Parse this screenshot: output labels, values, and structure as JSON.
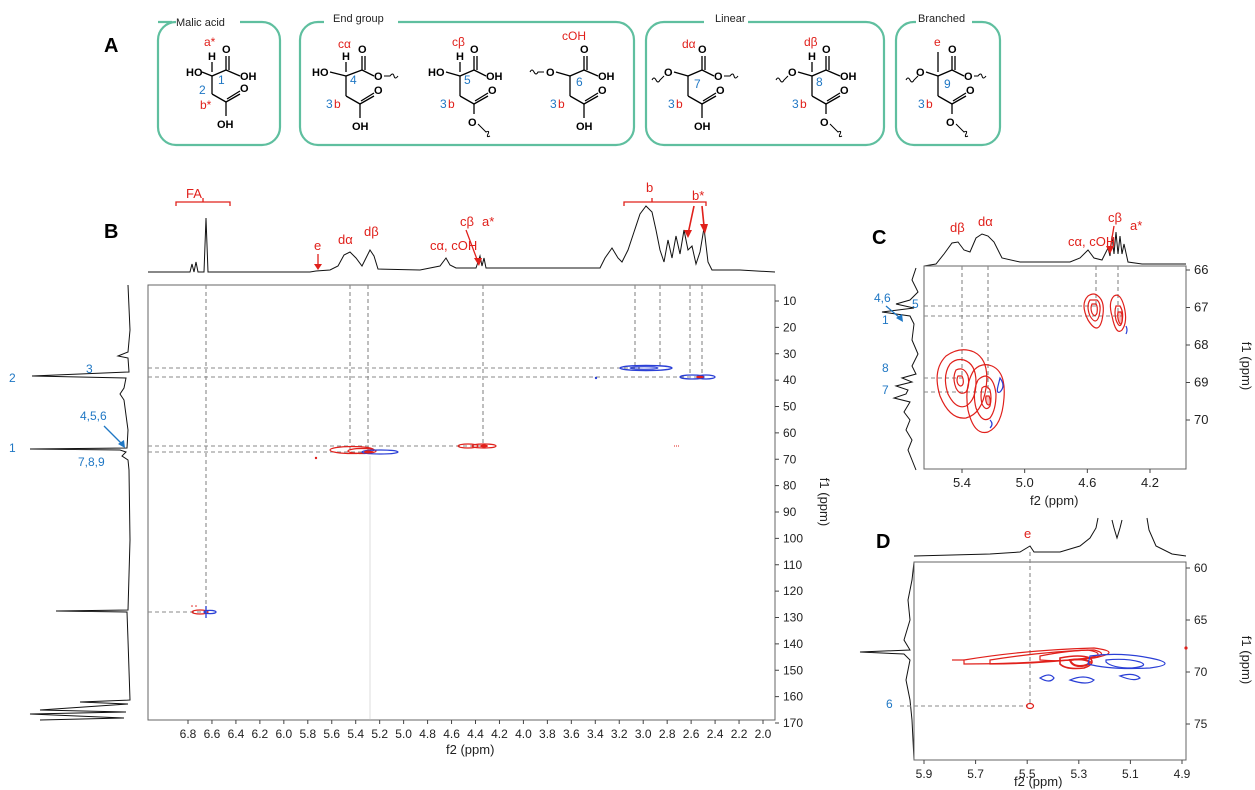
{
  "panels": {
    "A": {
      "letter": "A",
      "groups": [
        {
          "title": "Malic acid"
        },
        {
          "title": "End group"
        },
        {
          "title": "Linear"
        },
        {
          "title": "Branched"
        }
      ],
      "labels": {
        "a_star": "a*",
        "b_star": "b*",
        "c_alpha": "cα",
        "c_beta": "cβ",
        "c_oh": "cOH",
        "d_alpha": "dα",
        "d_beta": "dβ",
        "e": "e",
        "b": "b",
        "n1": "1",
        "n2": "2",
        "n3": "3",
        "n4": "4",
        "n5": "5",
        "n6": "6",
        "n7": "7",
        "n8": "8",
        "n9": "9",
        "ho": "HO",
        "oh": "OH",
        "o": "O",
        "h": "H"
      }
    },
    "B": {
      "letter": "B",
      "xlabel": "f2 (ppm)",
      "ylabel": "f1 (ppm)",
      "x_ticks": [
        "6.8",
        "6.6",
        "6.4",
        "6.2",
        "6.0",
        "5.8",
        "5.6",
        "5.4",
        "5.2",
        "5.0",
        "4.8",
        "4.6",
        "4.4",
        "4.2",
        "4.0",
        "3.8",
        "3.6",
        "3.4",
        "3.2",
        "3.0",
        "2.8",
        "2.6",
        "2.4",
        "2.2",
        "2.0"
      ],
      "y_ticks": [
        "10",
        "20",
        "30",
        "40",
        "50",
        "60",
        "70",
        "80",
        "90",
        "100",
        "110",
        "120",
        "130",
        "140",
        "150",
        "160",
        "170"
      ],
      "top_labels": {
        "fa": "FA",
        "e": "e",
        "d_alpha": "dα",
        "d_beta": "dβ",
        "c_alpha_oh": "cα, cOH",
        "c_beta": "cβ",
        "a_star": "a*",
        "b": "b",
        "b_star": "b*"
      },
      "side_labels": {
        "l3": "3",
        "l2": "2",
        "l456": "4,5,6",
        "l1": "1",
        "l789": "7,8,9"
      }
    },
    "C": {
      "letter": "C",
      "xlabel": "f2 (ppm)",
      "ylabel": "f1 (ppm)",
      "x_ticks": [
        "5.4",
        "5.0",
        "4.6",
        "4.2"
      ],
      "y_ticks": [
        "66",
        "67",
        "68",
        "69",
        "70"
      ],
      "top_labels": {
        "d_beta": "dβ",
        "d_alpha": "dα",
        "c_alpha_oh": "cα, cOH",
        "c_beta": "cβ",
        "a_star": "a*"
      },
      "side_labels": {
        "l46": "4,6",
        "l5": "5",
        "l1": "1",
        "l8": "8",
        "l7": "7"
      }
    },
    "D": {
      "letter": "D",
      "xlabel": "f2 (ppm)",
      "ylabel": "f1 (ppm)",
      "x_ticks": [
        "5.9",
        "5.7",
        "5.5",
        "5.3",
        "5.1",
        "4.9"
      ],
      "y_ticks": [
        "60",
        "65",
        "70",
        "75"
      ],
      "top_labels": {
        "e": "e"
      },
      "side_labels": {
        "l6": "6"
      }
    }
  },
  "colors": {
    "positive": "#e0201b",
    "negative": "#2a3fd6",
    "box": "#5fbf9f",
    "label_blue": "#1f77c4",
    "label_red": "#e0201b"
  }
}
